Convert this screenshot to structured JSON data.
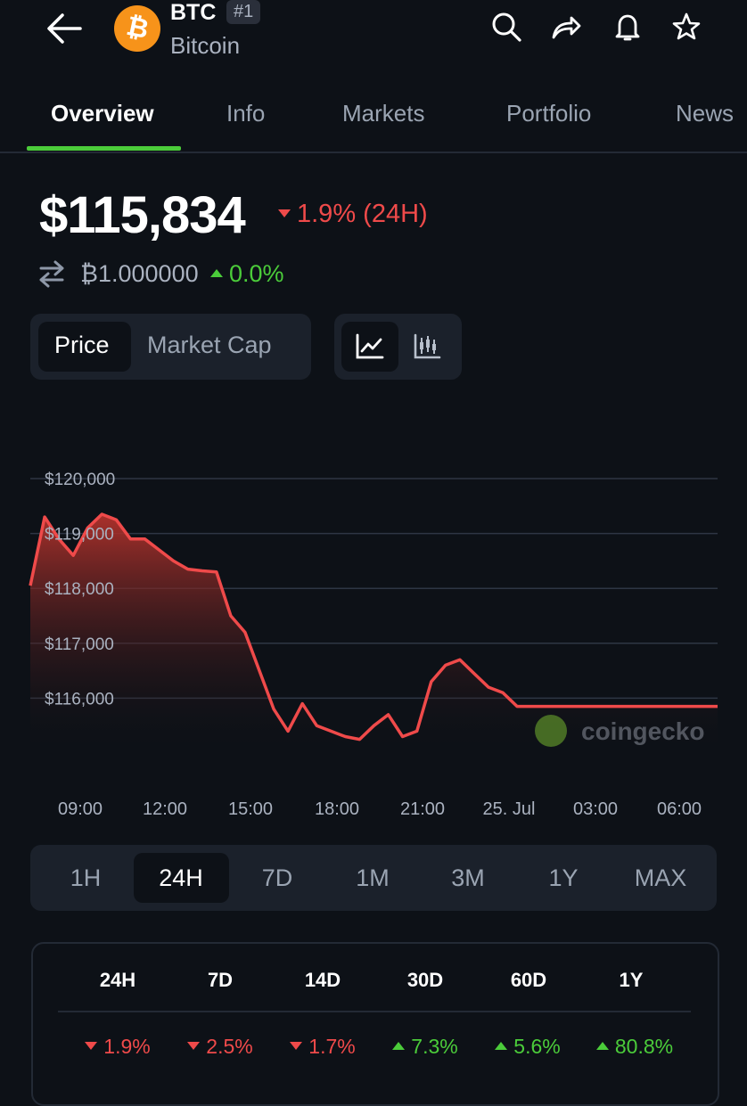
{
  "header": {
    "symbol": "BTC",
    "rank": "#1",
    "name": "Bitcoin",
    "coin_color": "#f7931a"
  },
  "tabs": [
    "Overview",
    "Info",
    "Markets",
    "Portfolio",
    "News"
  ],
  "active_tab": "Overview",
  "price": {
    "value": "$115,834",
    "change_24h": "1.9% (24H)",
    "btc_value": "₿1.000000",
    "btc_change": "0.0%"
  },
  "toggle": {
    "price_label": "Price",
    "market_cap_label": "Market Cap",
    "selected": "Price"
  },
  "chart_data": {
    "type": "area",
    "series_color": "#ef4a4a",
    "y_ticks": [
      "$120,000",
      "$119,000",
      "$118,000",
      "$117,000",
      "$116,000"
    ],
    "x_ticks": [
      "09:00",
      "12:00",
      "15:00",
      "18:00",
      "21:00",
      "25. Jul",
      "03:00",
      "06:00"
    ],
    "ylim": [
      115000,
      120000
    ],
    "watermark": "coingecko",
    "x": [
      0,
      0.5,
      1,
      1.5,
      2,
      2.5,
      3,
      3.5,
      4,
      4.5,
      5,
      5.5,
      6,
      6.5,
      7,
      7.5,
      8,
      8.5,
      9,
      9.5,
      10,
      10.5,
      11,
      11.5,
      12,
      12.5,
      13,
      13.5,
      14,
      14.5,
      15,
      15.5,
      16,
      16.5,
      17,
      17.5,
      18,
      18.5,
      19,
      19.5,
      20,
      20.5,
      21,
      21.5,
      22,
      22.5,
      23,
      23.5,
      24
    ],
    "values": [
      118050,
      119300,
      118900,
      118600,
      119100,
      119350,
      119250,
      118900,
      118900,
      118700,
      118500,
      118350,
      118320,
      118300,
      117500,
      117200,
      116500,
      115800,
      115400,
      115900,
      115500,
      115400,
      115300,
      115250,
      115500,
      115700,
      115300,
      115400,
      116300,
      116600,
      116700,
      116450,
      116200,
      116100,
      115850,
      115850,
      115850,
      115850,
      115850,
      115850,
      115850,
      115850,
      115850,
      115850,
      115850,
      115850,
      115850,
      115850,
      115850
    ]
  },
  "ranges": [
    "1H",
    "24H",
    "7D",
    "1M",
    "3M",
    "1Y",
    "MAX"
  ],
  "active_range": "24H",
  "performance": {
    "headers": [
      "24H",
      "7D",
      "14D",
      "30D",
      "60D",
      "1Y"
    ],
    "values": [
      "1.9%",
      "2.5%",
      "1.7%",
      "7.3%",
      "5.6%",
      "80.8%"
    ],
    "directions": [
      "down",
      "down",
      "down",
      "up",
      "up",
      "up"
    ]
  }
}
